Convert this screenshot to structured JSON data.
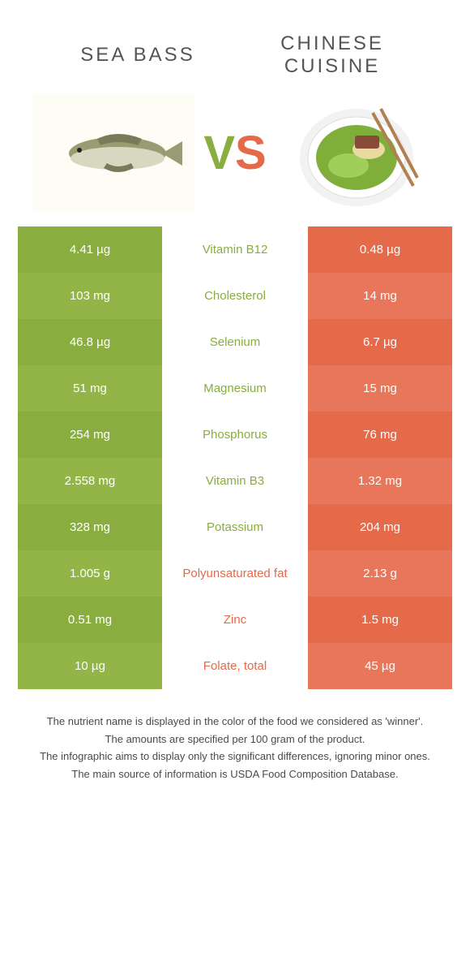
{
  "colors": {
    "green": "#8aad3f",
    "greenAlt": "#93b548",
    "orange": "#e46a4a",
    "orangeAlt": "#e7765a",
    "titleGrey": "#555555",
    "footerGrey": "#4a4a4a"
  },
  "header": {
    "left": "SEA BASS",
    "right": "CHINESE CUISINE"
  },
  "vs": {
    "v": "V",
    "s": "S"
  },
  "rows": [
    {
      "left": "4.41 µg",
      "label": "Vitamin B12",
      "right": "0.48 µg",
      "winner": "left"
    },
    {
      "left": "103 mg",
      "label": "Cholesterol",
      "right": "14 mg",
      "winner": "left"
    },
    {
      "left": "46.8 µg",
      "label": "Selenium",
      "right": "6.7 µg",
      "winner": "left"
    },
    {
      "left": "51 mg",
      "label": "Magnesium",
      "right": "15 mg",
      "winner": "left"
    },
    {
      "left": "254 mg",
      "label": "Phosphorus",
      "right": "76 mg",
      "winner": "left"
    },
    {
      "left": "2.558 mg",
      "label": "Vitamin B3",
      "right": "1.32 mg",
      "winner": "left"
    },
    {
      "left": "328 mg",
      "label": "Potassium",
      "right": "204 mg",
      "winner": "left"
    },
    {
      "left": "1.005 g",
      "label": "Polyunsaturated fat",
      "right": "2.13 g",
      "winner": "right"
    },
    {
      "left": "0.51 mg",
      "label": "Zinc",
      "right": "1.5 mg",
      "winner": "right"
    },
    {
      "left": "10 µg",
      "label": "Folate, total",
      "right": "45 µg",
      "winner": "right"
    }
  ],
  "footer": [
    "The nutrient name is displayed in the color of the food we considered as 'winner'.",
    "The amounts are specified per 100 gram of the product.",
    "The infographic aims to display only the significant differences, ignoring minor ones.",
    "The main source of information is USDA Food Composition Database."
  ]
}
